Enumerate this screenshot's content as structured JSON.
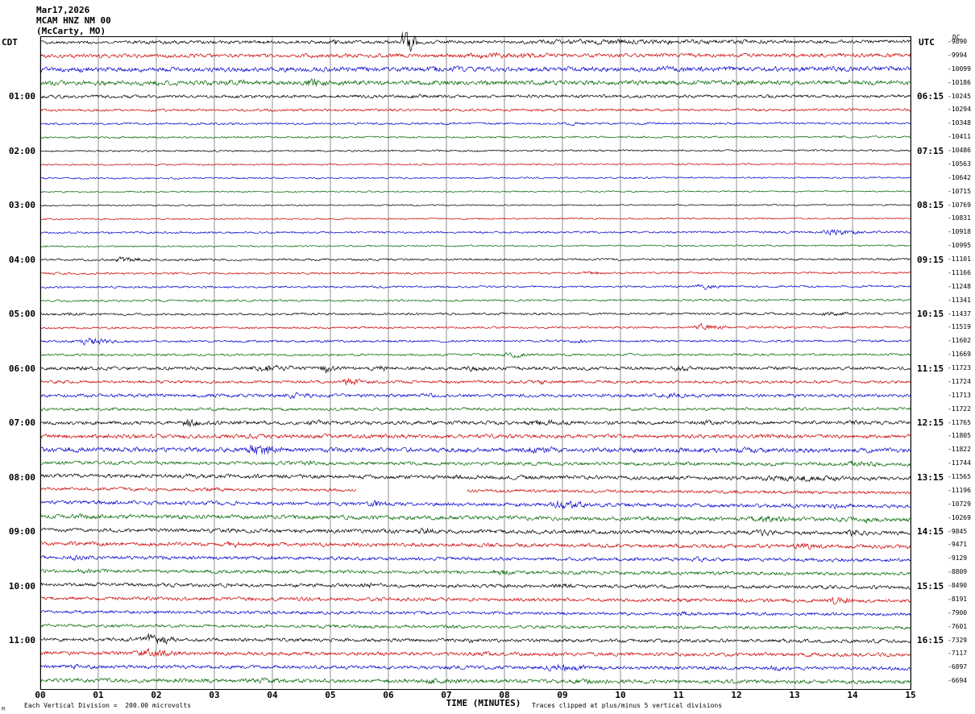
{
  "title": {
    "date": "Mar17,2026",
    "station": "MCAM HNZ NM 00",
    "location": "(McCarty, MO)"
  },
  "axes": {
    "left_header": "CDT",
    "right_header": "UTC",
    "dc_header": "DC",
    "x_label": "TIME (MINUTES)",
    "x_ticks": [
      "00",
      "01",
      "02",
      "03",
      "04",
      "05",
      "06",
      "07",
      "08",
      "09",
      "10",
      "11",
      "12",
      "13",
      "14",
      "15"
    ]
  },
  "footer": {
    "scale_note": "Each Vertical Division =  200.00 microvolts",
    "clip_note": "Traces clipped at plus/minus 5 vertical divisions",
    "mark": "M"
  },
  "chart_data": {
    "type": "line",
    "subtype": "helicorder-seismogram",
    "title": "MCAM HNZ NM 00 (McCarty, MO) Mar17,2026",
    "x_range": [
      0,
      15
    ],
    "minutes_per_line": 15,
    "lines_per_hour": 4,
    "timezone_left": "CDT",
    "timezone_right": "UTC",
    "grid": "vertical lines each minute",
    "colors": {
      "black": "#000000",
      "red": "#cc0000",
      "blue": "#0000cc",
      "green": "#006600"
    },
    "color_cycle": [
      "black",
      "red",
      "blue",
      "green"
    ],
    "notable_event": {
      "row": 0,
      "minute": 6.3,
      "description": "large clipped spike on first trace"
    },
    "rows_format": "cdt = left hour label, utc = right hour label, dc = right DC offset value (microvolts), amp = background noise amplitude estimate (px)",
    "rows": [
      {
        "cdt": "",
        "utc": "",
        "dc": -9890,
        "amp": 1.6
      },
      {
        "cdt": "",
        "utc": "",
        "dc": -9994,
        "amp": 1.8
      },
      {
        "cdt": "",
        "utc": "",
        "dc": -10099,
        "amp": 2.2
      },
      {
        "cdt": "",
        "utc": "",
        "dc": -10186,
        "amp": 2.2
      },
      {
        "cdt": "01:00",
        "utc": "06:15",
        "dc": -10245,
        "amp": 1.5
      },
      {
        "cdt": "",
        "utc": "",
        "dc": -10294,
        "amp": 1.2
      },
      {
        "cdt": "",
        "utc": "",
        "dc": -10348,
        "amp": 1.0
      },
      {
        "cdt": "",
        "utc": "",
        "dc": -10411,
        "amp": 0.9
      },
      {
        "cdt": "02:00",
        "utc": "07:15",
        "dc": -10486,
        "amp": 0.9
      },
      {
        "cdt": "",
        "utc": "",
        "dc": -10563,
        "amp": 0.8
      },
      {
        "cdt": "",
        "utc": "",
        "dc": -10642,
        "amp": 0.8
      },
      {
        "cdt": "",
        "utc": "",
        "dc": -10715,
        "amp": 0.7
      },
      {
        "cdt": "03:00",
        "utc": "08:15",
        "dc": -10769,
        "amp": 0.7
      },
      {
        "cdt": "",
        "utc": "",
        "dc": -10831,
        "amp": 0.8
      },
      {
        "cdt": "",
        "utc": "",
        "dc": -10918,
        "amp": 1.0
      },
      {
        "cdt": "",
        "utc": "",
        "dc": -10995,
        "amp": 0.8
      },
      {
        "cdt": "04:00",
        "utc": "09:15",
        "dc": -11101,
        "amp": 1.1
      },
      {
        "cdt": "",
        "utc": "",
        "dc": -11166,
        "amp": 1.0
      },
      {
        "cdt": "",
        "utc": "",
        "dc": -11248,
        "amp": 1.0
      },
      {
        "cdt": "",
        "utc": "",
        "dc": -11341,
        "amp": 1.0
      },
      {
        "cdt": "05:00",
        "utc": "10:15",
        "dc": -11437,
        "amp": 1.1
      },
      {
        "cdt": "",
        "utc": "",
        "dc": -11519,
        "amp": 1.0
      },
      {
        "cdt": "",
        "utc": "",
        "dc": -11602,
        "amp": 1.1
      },
      {
        "cdt": "",
        "utc": "",
        "dc": -11669,
        "amp": 1.1
      },
      {
        "cdt": "06:00",
        "utc": "11:15",
        "dc": -11723,
        "amp": 1.6
      },
      {
        "cdt": "",
        "utc": "",
        "dc": -11724,
        "amp": 1.4
      },
      {
        "cdt": "",
        "utc": "",
        "dc": -11713,
        "amp": 1.6
      },
      {
        "cdt": "",
        "utc": "",
        "dc": -11722,
        "amp": 1.4
      },
      {
        "cdt": "07:00",
        "utc": "12:15",
        "dc": -11765,
        "amp": 1.7
      },
      {
        "cdt": "",
        "utc": "",
        "dc": -11805,
        "amp": 1.9
      },
      {
        "cdt": "",
        "utc": "",
        "dc": -11822,
        "amp": 2.2
      },
      {
        "cdt": "",
        "utc": "",
        "dc": -11744,
        "amp": 1.7
      },
      {
        "cdt": "08:00",
        "utc": "13:15",
        "dc": -11565,
        "amp": 1.9
      },
      {
        "cdt": "",
        "utc": "",
        "dc": -11196,
        "amp": 1.5
      },
      {
        "cdt": "",
        "utc": "",
        "dc": -10729,
        "amp": 1.8
      },
      {
        "cdt": "",
        "utc": "",
        "dc": -10269,
        "amp": 2.0
      },
      {
        "cdt": "09:00",
        "utc": "14:15",
        "dc": -9845,
        "amp": 1.9
      },
      {
        "cdt": "",
        "utc": "",
        "dc": -9471,
        "amp": 1.9
      },
      {
        "cdt": "",
        "utc": "",
        "dc": -9129,
        "amp": 1.7
      },
      {
        "cdt": "",
        "utc": "",
        "dc": -8809,
        "amp": 1.7
      },
      {
        "cdt": "10:00",
        "utc": "15:15",
        "dc": -8490,
        "amp": 1.7
      },
      {
        "cdt": "",
        "utc": "",
        "dc": -8191,
        "amp": 1.7
      },
      {
        "cdt": "",
        "utc": "",
        "dc": -7900,
        "amp": 1.5
      },
      {
        "cdt": "",
        "utc": "",
        "dc": -7601,
        "amp": 1.5
      },
      {
        "cdt": "11:00",
        "utc": "16:15",
        "dc": -7329,
        "amp": 1.7
      },
      {
        "cdt": "",
        "utc": "",
        "dc": -7117,
        "amp": 1.7
      },
      {
        "cdt": "",
        "utc": "",
        "dc": -6897,
        "amp": 1.7
      },
      {
        "cdt": "",
        "utc": "",
        "dc": -6694,
        "amp": 1.9
      }
    ],
    "bursts_format": "[row, start_minute, end_minute, peak_amplitude_px]",
    "bursts": [
      [
        0,
        6.22,
        6.5,
        16
      ],
      [
        0,
        5.0,
        5.3,
        3
      ],
      [
        0,
        7.2,
        15,
        2.6
      ],
      [
        1,
        5.1,
        5.6,
        2.4
      ],
      [
        1,
        7.0,
        9.6,
        3.0
      ],
      [
        1,
        10.5,
        11.0,
        2.2
      ],
      [
        2,
        0.2,
        2.0,
        2.6
      ],
      [
        2,
        6.3,
        8.2,
        3.0
      ],
      [
        2,
        9.0,
        15,
        2.6
      ],
      [
        3,
        2.9,
        4.1,
        3.2
      ],
      [
        3,
        4.5,
        5.1,
        4.5
      ],
      [
        3,
        6.0,
        7.0,
        2.6
      ],
      [
        4,
        6.2,
        7.2,
        2.2
      ],
      [
        4,
        9.5,
        10.2,
        2.0
      ],
      [
        6,
        9.0,
        9.6,
        1.8
      ],
      [
        14,
        13.4,
        14.3,
        3.2
      ],
      [
        16,
        1.2,
        2.0,
        3.0
      ],
      [
        17,
        9.3,
        9.8,
        2.0
      ],
      [
        18,
        11.2,
        11.9,
        2.6
      ],
      [
        20,
        0.3,
        0.9,
        2.0
      ],
      [
        20,
        13.4,
        14.1,
        2.6
      ],
      [
        21,
        11.2,
        12.0,
        3.2
      ],
      [
        22,
        0.6,
        1.4,
        3.6
      ],
      [
        22,
        9.1,
        9.6,
        2.2
      ],
      [
        23,
        7.9,
        8.5,
        3.0
      ],
      [
        24,
        0.5,
        1.2,
        2.4
      ],
      [
        24,
        3.6,
        4.5,
        4.2
      ],
      [
        24,
        4.8,
        5.2,
        5.0
      ],
      [
        24,
        5.7,
        6.2,
        3.2
      ],
      [
        24,
        7.3,
        7.8,
        3.4
      ],
      [
        24,
        10.8,
        11.4,
        2.8
      ],
      [
        25,
        5.2,
        5.6,
        4.4
      ],
      [
        25,
        8.5,
        9.0,
        2.4
      ],
      [
        26,
        4.1,
        4.9,
        3.4
      ],
      [
        26,
        6.5,
        7.0,
        2.4
      ],
      [
        26,
        10.6,
        11.3,
        3.2
      ],
      [
        27,
        10.0,
        10.6,
        2.2
      ],
      [
        28,
        2.4,
        2.8,
        4.6
      ],
      [
        28,
        4.5,
        5.0,
        3.2
      ],
      [
        28,
        8.2,
        9.4,
        3.2
      ],
      [
        28,
        11.3,
        11.8,
        3.0
      ],
      [
        28,
        13.8,
        14.4,
        2.6
      ],
      [
        29,
        0.2,
        0.7,
        3.0
      ],
      [
        29,
        3.4,
        4.0,
        2.6
      ],
      [
        30,
        0.3,
        0.8,
        3.2
      ],
      [
        30,
        3.5,
        4.3,
        5.5
      ],
      [
        30,
        8.0,
        9.4,
        3.6
      ],
      [
        30,
        12.0,
        12.6,
        2.8
      ],
      [
        31,
        4.4,
        5.0,
        2.6
      ],
      [
        31,
        13.7,
        14.7,
        3.4
      ],
      [
        32,
        7.0,
        7.6,
        2.6
      ],
      [
        32,
        12.1,
        14.6,
        3.2
      ],
      [
        33,
        2.7,
        3.4,
        2.6
      ],
      [
        34,
        5.5,
        6.3,
        3.4
      ],
      [
        34,
        8.7,
        9.6,
        4.4
      ],
      [
        34,
        13.5,
        14.3,
        3.0
      ],
      [
        35,
        0.5,
        1.5,
        2.8
      ],
      [
        35,
        12.1,
        13.3,
        3.6
      ],
      [
        35,
        14.0,
        14.7,
        3.2
      ],
      [
        36,
        4.2,
        4.8,
        2.8
      ],
      [
        36,
        6.4,
        7.1,
        3.4
      ],
      [
        36,
        12.2,
        12.9,
        3.2
      ],
      [
        36,
        13.8,
        14.4,
        3.6
      ],
      [
        37,
        0.3,
        1.0,
        2.6
      ],
      [
        37,
        3.1,
        3.7,
        3.0
      ],
      [
        37,
        12.9,
        13.7,
        3.6
      ],
      [
        38,
        0.4,
        1.1,
        3.0
      ],
      [
        38,
        11.1,
        11.8,
        2.6
      ],
      [
        39,
        0.5,
        1.2,
        2.6
      ],
      [
        39,
        7.7,
        8.4,
        3.0
      ],
      [
        40,
        3.0,
        3.6,
        2.4
      ],
      [
        40,
        5.4,
        6.1,
        3.0
      ],
      [
        40,
        8.7,
        9.4,
        3.0
      ],
      [
        41,
        7.5,
        8.1,
        2.4
      ],
      [
        41,
        13.5,
        14.2,
        3.6
      ],
      [
        42,
        10.9,
        11.6,
        2.6
      ],
      [
        43,
        6.8,
        7.4,
        2.2
      ],
      [
        44,
        1.7,
        2.4,
        5.5
      ],
      [
        44,
        7.2,
        7.9,
        2.4
      ],
      [
        45,
        1.5,
        2.6,
        4.2
      ],
      [
        45,
        7.4,
        8.1,
        2.6
      ],
      [
        45,
        12.3,
        12.9,
        2.4
      ],
      [
        46,
        0.4,
        1.0,
        2.4
      ],
      [
        46,
        8.6,
        9.7,
        3.8
      ],
      [
        46,
        12.4,
        13.1,
        2.6
      ],
      [
        47,
        3.4,
        4.6,
        3.2
      ],
      [
        47,
        6.4,
        7.6,
        3.0
      ],
      [
        47,
        9.0,
        10.0,
        2.6
      ]
    ],
    "gaps_format": "[row, start_minute, end_minute] = no data recorded",
    "gaps": [
      [
        33,
        5.45,
        7.35
      ]
    ]
  }
}
